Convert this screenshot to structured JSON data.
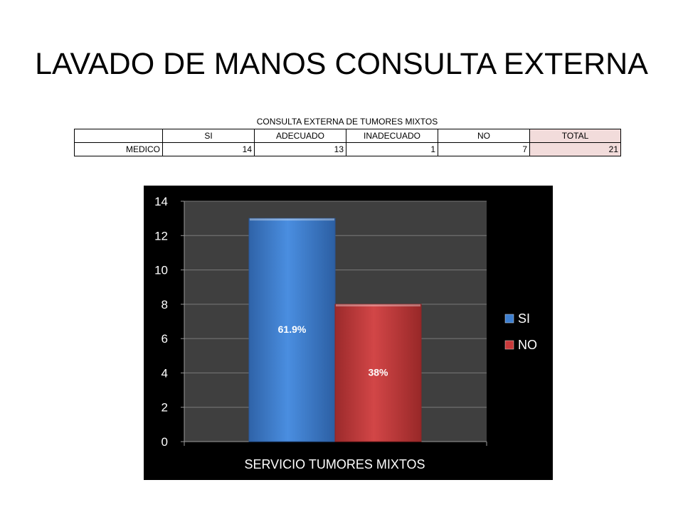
{
  "slide": {
    "title": "LAVADO DE MANOS CONSULTA EXTERNA"
  },
  "table": {
    "caption": "CONSULTA EXTERNA DE TUMORES MIXTOS",
    "headers": [
      "",
      "SI",
      "ADECUADO",
      "INADECUADO",
      "NO",
      "TOTAL"
    ],
    "rows": [
      [
        "MEDICO",
        "14",
        "13",
        "1",
        "7",
        "21"
      ]
    ]
  },
  "colors": {
    "si": "#3d7fd0",
    "no": "#c8393a",
    "plot_bg": "#3f3f3f",
    "chart_bg": "#000000",
    "total_cell": "#f2dcdb"
  },
  "chart_data": {
    "type": "bar",
    "categories": [
      "SERVICIO TUMORES MIXTOS"
    ],
    "series": [
      {
        "name": "SI",
        "values": [
          13
        ],
        "data_label": "61.9%"
      },
      {
        "name": "NO",
        "values": [
          8
        ],
        "data_label": "38%"
      }
    ],
    "xlabel": "",
    "ylabel": "",
    "ylim": [
      0,
      14
    ],
    "yticks": [
      "0",
      "2",
      "4",
      "6",
      "8",
      "10",
      "12",
      "14"
    ],
    "grid": true,
    "legend": "right"
  }
}
